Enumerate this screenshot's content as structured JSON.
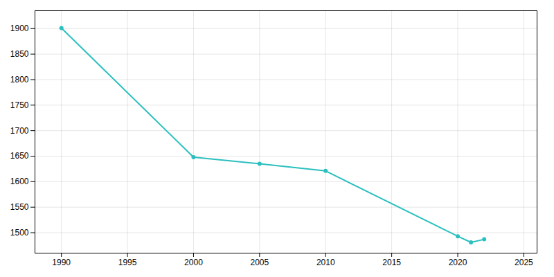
{
  "chart_data": {
    "type": "line",
    "x": [
      1990,
      2000,
      2005,
      2010,
      2020,
      2021,
      2022
    ],
    "values": [
      1901,
      1648,
      1635,
      1621,
      1493,
      1481,
      1487
    ],
    "color": "#2bbfbf",
    "marker": "circle",
    "xlim": [
      1988,
      2026
    ],
    "ylim": [
      1460,
      1935
    ],
    "xticks": [
      1990,
      1995,
      2000,
      2005,
      2010,
      2015,
      2020,
      2025
    ],
    "yticks": [
      1500,
      1550,
      1600,
      1650,
      1700,
      1750,
      1800,
      1850,
      1900
    ],
    "grid": true
  }
}
